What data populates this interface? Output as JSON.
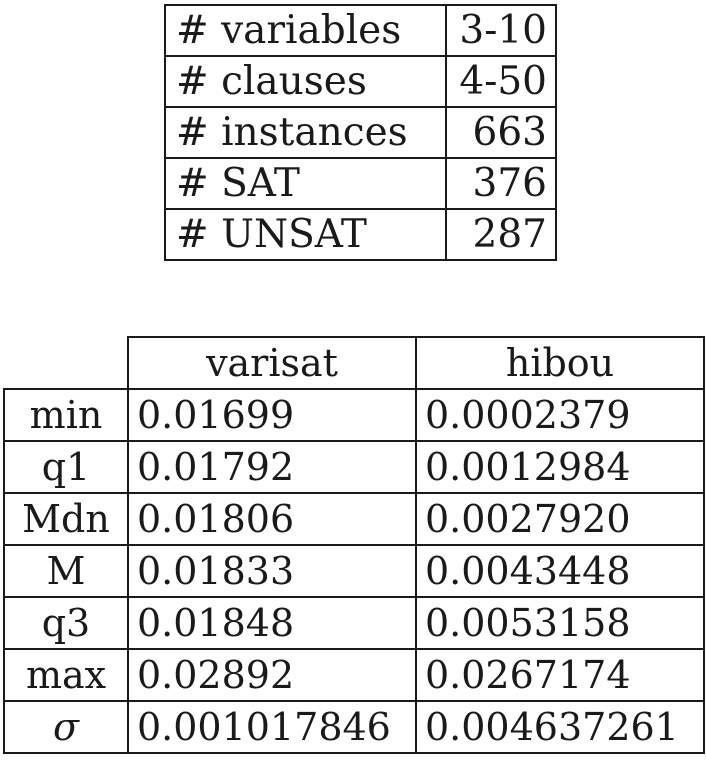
{
  "summary": {
    "rows": [
      {
        "label": "# variables",
        "value": "3-10"
      },
      {
        "label": "# clauses",
        "value": "4-50"
      },
      {
        "label": "# instances",
        "value": "663"
      },
      {
        "label": "# SAT",
        "value": "376"
      },
      {
        "label": "# UNSAT",
        "value": "287"
      }
    ]
  },
  "stats": {
    "columns": [
      "varisat",
      "hibou"
    ],
    "rows": [
      {
        "label": "min",
        "varisat": "0.01699",
        "hibou": "0.0002379"
      },
      {
        "label": "q1",
        "varisat": "0.01792",
        "hibou": "0.0012984"
      },
      {
        "label": "Mdn",
        "varisat": "0.01806",
        "hibou": "0.0027920"
      },
      {
        "label": "M",
        "varisat": "0.01833",
        "hibou": "0.0043448"
      },
      {
        "label": "q3",
        "varisat": "0.01848",
        "hibou": "0.0053158"
      },
      {
        "label": "max",
        "varisat": "0.02892",
        "hibou": "0.0267174"
      },
      {
        "label": "σ",
        "varisat": "0.001017846",
        "hibou": "0.004637261"
      }
    ]
  }
}
